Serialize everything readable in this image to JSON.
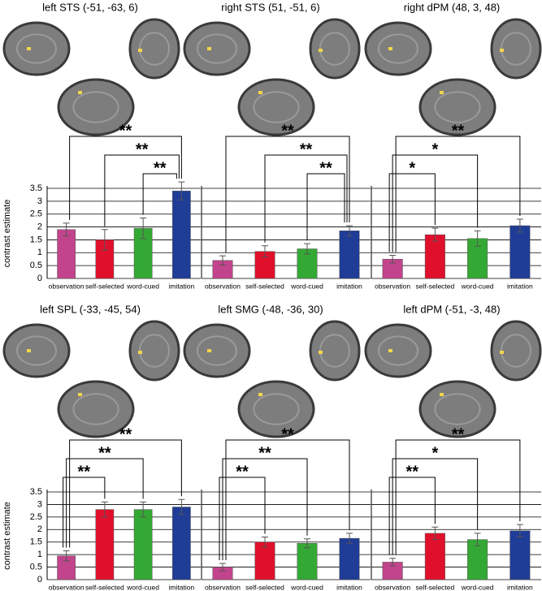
{
  "chart_data": [
    {
      "type": "bar",
      "title": "left STS (-51, -63, 6)",
      "ylabel": "contrast estimate",
      "categories": [
        "observation",
        "self-selected",
        "word-cued",
        "imitation"
      ],
      "values": [
        1.9,
        1.5,
        1.95,
        3.4
      ],
      "errors": [
        0.25,
        0.4,
        0.4,
        0.35
      ],
      "colors": [
        "#c2448c",
        "#e0102c",
        "#34a834",
        "#1f3c96"
      ],
      "ylim": [
        0,
        3.5
      ],
      "yticks": [
        0,
        0.5,
        1,
        1.5,
        2,
        2.5,
        3,
        3.5
      ],
      "grid": true,
      "annotations": [
        {
          "from": "word-cued",
          "to": "imitation",
          "label": "**"
        },
        {
          "from": "self-selected",
          "to": "imitation",
          "label": "**"
        },
        {
          "from": "observation",
          "to": "imitation",
          "label": "**"
        }
      ]
    },
    {
      "type": "bar",
      "title": "right STS (51, -51, 6)",
      "categories": [
        "observation",
        "self-selected",
        "word-cued",
        "imitation"
      ],
      "values": [
        0.7,
        1.05,
        1.15,
        1.85
      ],
      "errors": [
        0.18,
        0.22,
        0.2,
        0.2
      ],
      "colors": [
        "#c2448c",
        "#e0102c",
        "#34a834",
        "#1f3c96"
      ],
      "ylim": [
        0,
        3.5
      ],
      "yticks": [
        0,
        0.5,
        1,
        1.5,
        2,
        2.5,
        3,
        3.5
      ],
      "grid": true,
      "annotations": [
        {
          "from": "word-cued",
          "to": "imitation",
          "label": "**"
        },
        {
          "from": "self-selected",
          "to": "imitation",
          "label": "**"
        },
        {
          "from": "observation",
          "to": "imitation",
          "label": "**"
        }
      ]
    },
    {
      "type": "bar",
      "title": "right dPM (48, 3, 48)",
      "categories": [
        "observation",
        "self-selected",
        "word-cued",
        "imitation"
      ],
      "values": [
        0.75,
        1.7,
        1.55,
        2.05
      ],
      "errors": [
        0.15,
        0.25,
        0.3,
        0.25
      ],
      "colors": [
        "#c2448c",
        "#e0102c",
        "#34a834",
        "#1f3c96"
      ],
      "ylim": [
        0,
        3.5
      ],
      "yticks": [
        0,
        0.5,
        1,
        1.5,
        2,
        2.5,
        3,
        3.5
      ],
      "grid": true,
      "annotations": [
        {
          "from": "observation",
          "to": "self-selected",
          "label": "*"
        },
        {
          "from": "observation",
          "to": "word-cued",
          "label": "*"
        },
        {
          "from": "observation",
          "to": "imitation",
          "label": "**"
        }
      ]
    },
    {
      "type": "bar",
      "title": "left SPL (-33, -45, 54)",
      "ylabel": "contrast estimate",
      "categories": [
        "observation",
        "self-selected",
        "word-cued",
        "imitation"
      ],
      "values": [
        0.95,
        2.8,
        2.8,
        2.9
      ],
      "errors": [
        0.2,
        0.3,
        0.3,
        0.3
      ],
      "colors": [
        "#c2448c",
        "#e0102c",
        "#34a834",
        "#1f3c96"
      ],
      "ylim": [
        0,
        3.5
      ],
      "yticks": [
        0,
        0.5,
        1,
        1.5,
        2,
        2.5,
        3,
        3.5
      ],
      "grid": true,
      "annotations": [
        {
          "from": "observation",
          "to": "self-selected",
          "label": "**"
        },
        {
          "from": "observation",
          "to": "word-cued",
          "label": "**"
        },
        {
          "from": "observation",
          "to": "imitation",
          "label": "**"
        }
      ]
    },
    {
      "type": "bar",
      "title": "left SMG (-48, -36, 30)",
      "categories": [
        "observation",
        "self-selected",
        "word-cued",
        "imitation"
      ],
      "values": [
        0.5,
        1.5,
        1.45,
        1.65
      ],
      "errors": [
        0.15,
        0.2,
        0.18,
        0.2
      ],
      "colors": [
        "#c2448c",
        "#e0102c",
        "#34a834",
        "#1f3c96"
      ],
      "ylim": [
        0,
        3.5
      ],
      "yticks": [
        0,
        0.5,
        1,
        1.5,
        2,
        2.5,
        3,
        3.5
      ],
      "grid": true,
      "annotations": [
        {
          "from": "observation",
          "to": "self-selected",
          "label": "**"
        },
        {
          "from": "observation",
          "to": "word-cued",
          "label": "**"
        },
        {
          "from": "observation",
          "to": "imitation",
          "label": "**"
        }
      ]
    },
    {
      "type": "bar",
      "title": "left dPM (-51, -3, 48)",
      "categories": [
        "observation",
        "self-selected",
        "word-cued",
        "imitation"
      ],
      "values": [
        0.7,
        1.85,
        1.6,
        1.95
      ],
      "errors": [
        0.15,
        0.25,
        0.25,
        0.25
      ],
      "colors": [
        "#c2448c",
        "#e0102c",
        "#34a834",
        "#1f3c96"
      ],
      "ylim": [
        0,
        3.5
      ],
      "yticks": [
        0,
        0.5,
        1,
        1.5,
        2,
        2.5,
        3,
        3.5
      ],
      "grid": true,
      "annotations": [
        {
          "from": "observation",
          "to": "self-selected",
          "label": "**"
        },
        {
          "from": "observation",
          "to": "word-cued",
          "label": "*"
        },
        {
          "from": "observation",
          "to": "imitation",
          "label": "**"
        }
      ]
    }
  ]
}
